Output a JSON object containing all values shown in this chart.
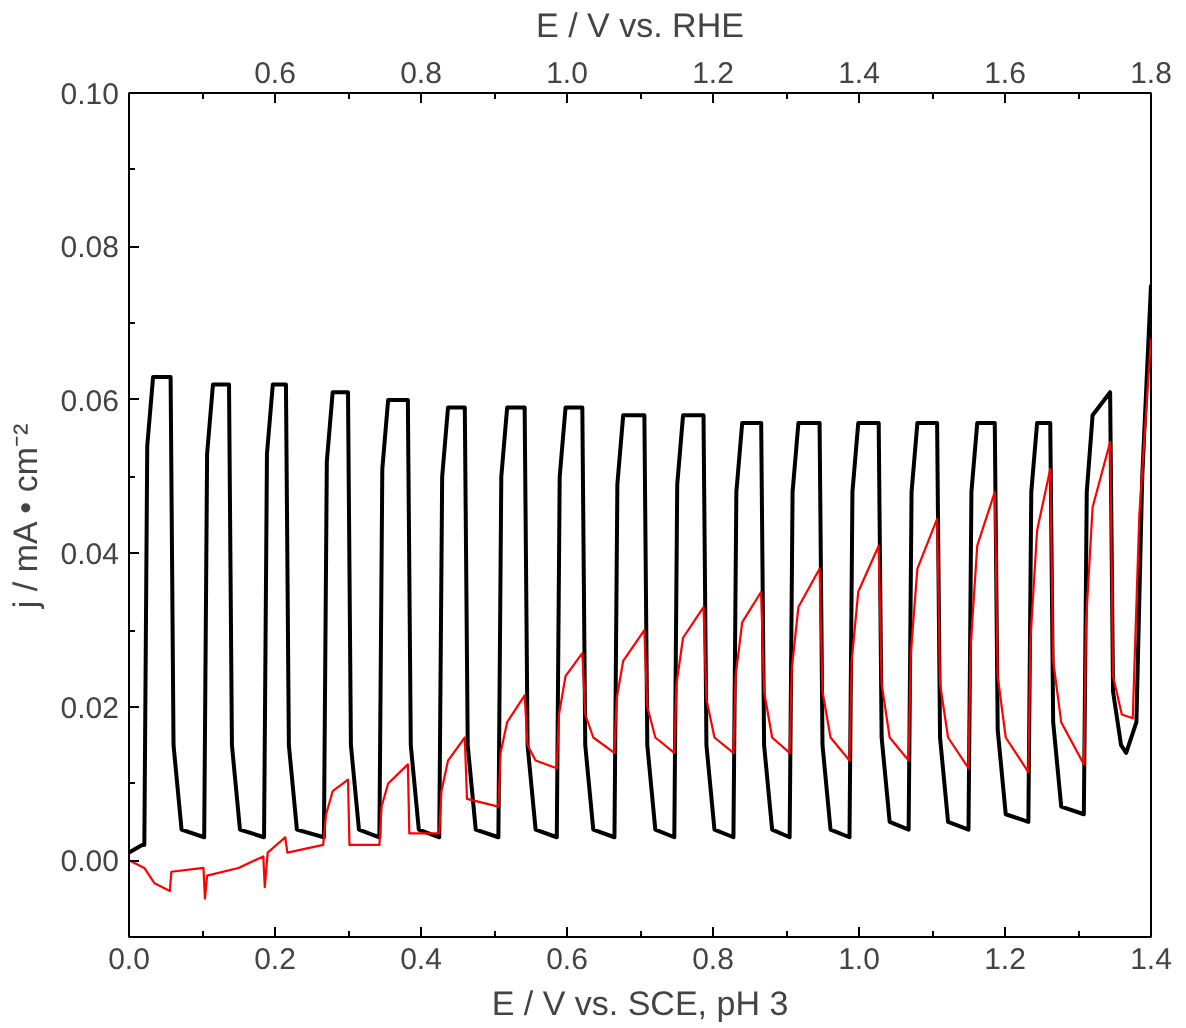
{
  "chart_data": {
    "type": "line",
    "xlabel": "E / V vs. SCE, pH 3",
    "x2label": "E / V vs. RHE",
    "ylabel": "j / mA • cm⁻²",
    "xlim": [
      0,
      1.4
    ],
    "ylim": [
      -0.01,
      0.1
    ],
    "x2lim": [
      0.4,
      1.8
    ],
    "xticks": [
      {
        "value": 0,
        "label": "0.0"
      },
      {
        "value": 0.1,
        "label": null
      },
      {
        "value": 0.2,
        "label": "0.2"
      },
      {
        "value": 0.3,
        "label": null
      },
      {
        "value": 0.4,
        "label": "0.4"
      },
      {
        "value": 0.5,
        "label": null
      },
      {
        "value": 0.6,
        "label": "0.6"
      },
      {
        "value": 0.7,
        "label": null
      },
      {
        "value": 0.8,
        "label": "0.8"
      },
      {
        "value": 0.9,
        "label": null
      },
      {
        "value": 1,
        "label": "1.0"
      },
      {
        "value": 1.1,
        "label": null
      },
      {
        "value": 1.2,
        "label": "1.2"
      },
      {
        "value": 1.3,
        "label": null
      },
      {
        "value": 1.4,
        "label": "1.4"
      }
    ],
    "x2ticks": [
      {
        "value": 0.5,
        "label": null
      },
      0.6,
      {
        "value": 0.7,
        "label": null
      },
      0.8,
      {
        "value": 0.9,
        "label": null
      },
      {
        "value": 1,
        "label": "1.0"
      },
      {
        "value": 1.1,
        "label": null
      },
      1.2,
      {
        "value": 1.3,
        "label": null
      },
      1.4,
      {
        "value": 1.5,
        "label": null
      },
      1.6,
      {
        "value": 1.7,
        "label": null
      },
      1.8
    ],
    "yticks": [
      {
        "value": -0.01,
        "label": null
      },
      {
        "value": 0,
        "label": "0.00"
      },
      {
        "value": 0.01,
        "label": null
      },
      {
        "value": 0.02,
        "label": "0.02"
      },
      {
        "value": 0.03,
        "label": null
      },
      {
        "value": 0.04,
        "label": "0.04"
      },
      {
        "value": 0.05,
        "label": null
      },
      {
        "value": 0.06,
        "label": "0.06"
      },
      {
        "value": 0.07,
        "label": null
      },
      {
        "value": 0.08,
        "label": "0.08"
      },
      {
        "value": 0.09,
        "label": null
      },
      {
        "value": 0.1,
        "label": "0.10"
      }
    ],
    "grid": false,
    "series": [
      {
        "color": "#000000",
        "x": [
          0.0,
          0.018,
          0.021,
          0.025,
          0.033,
          0.057,
          0.061,
          0.072,
          0.103,
          0.107,
          0.115,
          0.137,
          0.141,
          0.152,
          0.185,
          0.189,
          0.197,
          0.215,
          0.219,
          0.23,
          0.267,
          0.271,
          0.279,
          0.3,
          0.304,
          0.315,
          0.343,
          0.347,
          0.355,
          0.382,
          0.386,
          0.397,
          0.425,
          0.429,
          0.437,
          0.46,
          0.464,
          0.475,
          0.506,
          0.51,
          0.518,
          0.542,
          0.546,
          0.557,
          0.586,
          0.59,
          0.598,
          0.621,
          0.625,
          0.636,
          0.665,
          0.669,
          0.677,
          0.706,
          0.71,
          0.721,
          0.747,
          0.751,
          0.759,
          0.787,
          0.791,
          0.802,
          0.828,
          0.832,
          0.84,
          0.866,
          0.87,
          0.881,
          0.905,
          0.909,
          0.917,
          0.946,
          0.95,
          0.961,
          0.987,
          0.991,
          0.999,
          1.027,
          1.031,
          1.042,
          1.068,
          1.072,
          1.08,
          1.107,
          1.111,
          1.122,
          1.15,
          1.154,
          1.162,
          1.186,
          1.19,
          1.201,
          1.232,
          1.236,
          1.244,
          1.262,
          1.266,
          1.277,
          1.308,
          1.312,
          1.32,
          1.344,
          1.348,
          1.359,
          1.366,
          1.38,
          1.388,
          1.4
        ],
        "values": [
          0.001,
          0.002,
          0.002,
          0.054,
          0.063,
          0.063,
          0.015,
          0.004,
          0.003,
          0.053,
          0.062,
          0.062,
          0.015,
          0.004,
          0.003,
          0.053,
          0.062,
          0.062,
          0.015,
          0.004,
          0.003,
          0.052,
          0.061,
          0.061,
          0.015,
          0.004,
          0.003,
          0.051,
          0.06,
          0.06,
          0.015,
          0.004,
          0.003,
          0.05,
          0.059,
          0.059,
          0.015,
          0.004,
          0.003,
          0.05,
          0.059,
          0.059,
          0.015,
          0.004,
          0.003,
          0.05,
          0.059,
          0.059,
          0.015,
          0.004,
          0.003,
          0.049,
          0.058,
          0.058,
          0.015,
          0.004,
          0.003,
          0.049,
          0.058,
          0.058,
          0.015,
          0.004,
          0.003,
          0.048,
          0.057,
          0.057,
          0.015,
          0.004,
          0.003,
          0.048,
          0.057,
          0.057,
          0.015,
          0.004,
          0.003,
          0.048,
          0.057,
          0.057,
          0.016,
          0.005,
          0.004,
          0.048,
          0.057,
          0.057,
          0.016,
          0.005,
          0.004,
          0.048,
          0.057,
          0.057,
          0.017,
          0.006,
          0.005,
          0.048,
          0.057,
          0.057,
          0.018,
          0.007,
          0.006,
          0.048,
          0.058,
          0.061,
          0.022,
          0.015,
          0.014,
          0.018,
          0.05,
          0.075
        ]
      },
      {
        "color": "#ff0000",
        "x": [
          0.0,
          0.021,
          0.035,
          0.056,
          0.058,
          0.102,
          0.104,
          0.107,
          0.15,
          0.184,
          0.186,
          0.19,
          0.214,
          0.217,
          0.266,
          0.27,
          0.279,
          0.3,
          0.302,
          0.343,
          0.346,
          0.355,
          0.382,
          0.384,
          0.425,
          0.428,
          0.437,
          0.46,
          0.463,
          0.506,
          0.509,
          0.518,
          0.542,
          0.546,
          0.557,
          0.586,
          0.589,
          0.598,
          0.621,
          0.625,
          0.636,
          0.665,
          0.668,
          0.677,
          0.706,
          0.71,
          0.721,
          0.747,
          0.75,
          0.759,
          0.787,
          0.791,
          0.802,
          0.828,
          0.831,
          0.84,
          0.866,
          0.87,
          0.881,
          0.905,
          0.908,
          0.917,
          0.946,
          0.95,
          0.961,
          0.987,
          0.99,
          0.999,
          1.027,
          1.031,
          1.042,
          1.068,
          1.071,
          1.08,
          1.107,
          1.111,
          1.122,
          1.15,
          1.153,
          1.162,
          1.186,
          1.19,
          1.201,
          1.232,
          1.235,
          1.244,
          1.262,
          1.266,
          1.277,
          1.308,
          1.311,
          1.32,
          1.344,
          1.348,
          1.36,
          1.375,
          1.384,
          1.4
        ],
        "values": [
          0.0,
          -0.001,
          -0.003,
          -0.004,
          -0.0015,
          -0.001,
          -0.005,
          -0.002,
          -0.001,
          0.0005,
          -0.0035,
          0.001,
          0.003,
          0.001,
          0.002,
          0.006,
          0.009,
          0.0105,
          0.002,
          0.002,
          0.007,
          0.01,
          0.0125,
          0.0035,
          0.0035,
          0.009,
          0.013,
          0.016,
          0.008,
          0.007,
          0.014,
          0.018,
          0.0215,
          0.015,
          0.013,
          0.012,
          0.019,
          0.024,
          0.027,
          0.019,
          0.016,
          0.014,
          0.021,
          0.026,
          0.03,
          0.02,
          0.016,
          0.014,
          0.023,
          0.029,
          0.033,
          0.021,
          0.016,
          0.014,
          0.024,
          0.031,
          0.035,
          0.022,
          0.016,
          0.014,
          0.025,
          0.033,
          0.038,
          0.022,
          0.016,
          0.013,
          0.026,
          0.035,
          0.041,
          0.023,
          0.016,
          0.013,
          0.027,
          0.038,
          0.0445,
          0.023,
          0.016,
          0.012,
          0.028,
          0.041,
          0.048,
          0.024,
          0.016,
          0.0115,
          0.029,
          0.043,
          0.051,
          0.026,
          0.018,
          0.0125,
          0.031,
          0.046,
          0.0545,
          0.024,
          0.019,
          0.0185,
          0.045,
          0.068
        ]
      }
    ]
  }
}
